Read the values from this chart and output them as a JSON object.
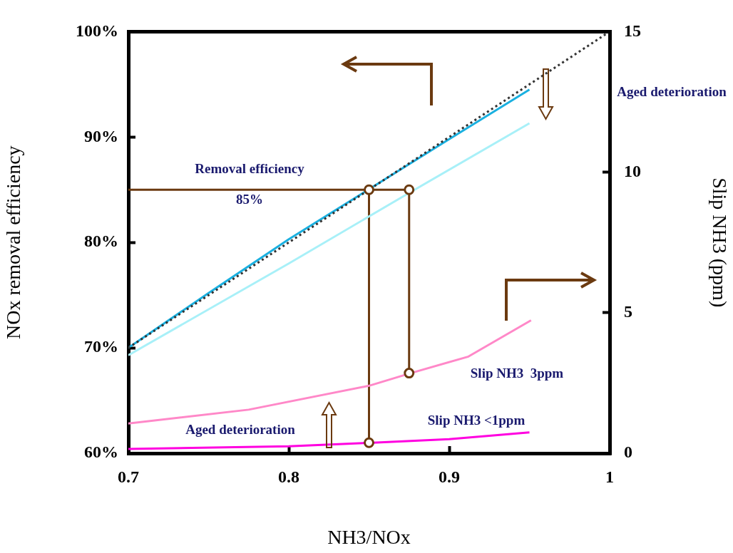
{
  "chart_data": {
    "type": "line",
    "xlabel": "NH3/NOx",
    "ylabel": "NOx removal efficiency",
    "y2label": "Slip NH3 (ppm)",
    "xlim": [
      0.7,
      1
    ],
    "xticks": [
      0.7,
      0.8,
      0.9,
      1
    ],
    "ylim": [
      60,
      100
    ],
    "yticks": [
      {
        "value": 60,
        "label": "60%"
      },
      {
        "value": 70,
        "label": "70%"
      },
      {
        "value": 80,
        "label": "80%"
      },
      {
        "value": 90,
        "label": "90%"
      },
      {
        "value": 100,
        "label": "100%"
      }
    ],
    "y2lim": [
      0,
      15
    ],
    "y2ticks": [
      0,
      5,
      10,
      15
    ],
    "grid": false,
    "legend": false,
    "marker": "none",
    "series": [
      {
        "color": "#333333",
        "line_style": "dotted",
        "x": [
          0.7,
          1
        ],
        "values": [
          70,
          100
        ]
      },
      {
        "color": "#1ab0e0",
        "x": [
          0.7,
          0.75,
          0.8,
          0.9,
          0.95
        ],
        "values": [
          70,
          75.2,
          80.3,
          89.8,
          94.5
        ]
      },
      {
        "color": "#a8f0f8",
        "x": [
          0.7,
          0.8,
          0.875,
          0.95
        ],
        "values": [
          69.3,
          78,
          84.7,
          91.3
        ]
      },
      {
        "color": "#ff88c8",
        "axis": "y2",
        "x": [
          0.7,
          0.775,
          0.85,
          0.876,
          0.912,
          0.951
        ],
        "values": [
          1.06,
          1.55,
          2.4,
          2.85,
          3.44,
          4.73
        ]
      },
      {
        "color": "#ff00e0",
        "axis": "y2",
        "x": [
          0.7,
          0.8,
          0.85,
          0.9,
          0.95
        ],
        "values": [
          0.15,
          0.25,
          0.37,
          0.5,
          0.74
        ]
      },
      {
        "color": "#6b3a10",
        "x": [
          0.7,
          0.875
        ],
        "values": [
          85,
          85
        ]
      },
      {
        "color": "#6b3a10",
        "x": [
          0.85,
          0.85
        ],
        "values": [
          85,
          61
        ]
      },
      {
        "color": "#6b3a10",
        "x": [
          0.875,
          0.875
        ],
        "values": [
          85,
          67.6
        ]
      },
      {
        "type": "scatter",
        "color": "#6b3a10",
        "marker": "circle",
        "x": [
          0.85,
          0.875,
          0.85,
          0.875
        ],
        "values": [
          85,
          85,
          61,
          67.6
        ]
      }
    ],
    "annotations": [
      "Removal efficiency",
      "85%",
      "Aged deterioration",
      "Slip NH3  3ppm",
      "Slip NH3 <1ppm",
      "Aged deterioration"
    ]
  }
}
